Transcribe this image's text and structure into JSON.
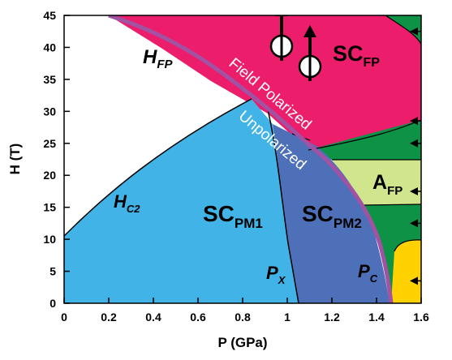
{
  "chart_data": {
    "type": "area",
    "xlabel": "P (GPa)",
    "ylabel": "H (T)",
    "xlim": [
      0,
      1.6
    ],
    "ylim": [
      0,
      45
    ],
    "x_ticks": [
      "0",
      "0.2",
      "0.4",
      "0.6",
      "0.8",
      "1",
      "1.2",
      "1.4",
      "1.6"
    ],
    "y_ticks": [
      "0",
      "5",
      "10",
      "15",
      "20",
      "25",
      "30",
      "35",
      "40",
      "45"
    ],
    "colors": {
      "sc_pm1": "#41b3e6",
      "sc_pm2": "#4e70b9",
      "sc_fp": "#ec1d6b",
      "a_fp": "#d1e68c",
      "green": "#0e9246",
      "yellow": "#ffd100",
      "fp_boundary": "#a152a3"
    },
    "regions": {
      "h_fp": {
        "main": "H",
        "sub": "FP"
      },
      "sc_fp": {
        "main": "SC",
        "sub": "FP"
      },
      "a_fp": {
        "main": "A",
        "sub": "FP"
      },
      "sc_pm1": {
        "main": "SC",
        "sub": "PM1"
      },
      "sc_pm2": {
        "main": "SC",
        "sub": "PM2"
      },
      "h_c2": {
        "main": "H",
        "sub": "C2"
      },
      "p_x": {
        "main": "P",
        "sub": "X"
      },
      "p_c": {
        "main": "P",
        "sub": "C"
      }
    },
    "boundary_labels": {
      "upper": "Field Polarized",
      "lower": "Unpolarized"
    },
    "boundaries": {
      "fp_line": [
        [
          0.2,
          45
        ],
        [
          0.4,
          42.5
        ],
        [
          0.6,
          39.5
        ],
        [
          0.8,
          35
        ],
        [
          0.95,
          30.5
        ],
        [
          1.1,
          26
        ],
        [
          1.2,
          22.5
        ],
        [
          1.3,
          17.5
        ],
        [
          1.38,
          12
        ],
        [
          1.43,
          7
        ],
        [
          1.46,
          3
        ],
        [
          1.47,
          0
        ]
      ],
      "hc2_pm1": [
        [
          0,
          10.5
        ],
        [
          0.2,
          17.5
        ],
        [
          0.4,
          23
        ],
        [
          0.6,
          27
        ],
        [
          0.8,
          31
        ],
        [
          0.9,
          32.5
        ]
      ],
      "px_line": [
        [
          0.9,
          32.5
        ],
        [
          0.96,
          26
        ],
        [
          1.0,
          16.5
        ],
        [
          1.04,
          3
        ],
        [
          1.05,
          0
        ]
      ],
      "pm2_top": [
        [
          0.96,
          26
        ],
        [
          1.08,
          25.5
        ],
        [
          1.12,
          23.5
        ]
      ]
    },
    "green_arrow_fields": [
      42.5,
      28.5,
      25,
      17.5,
      12.5,
      3.5
    ]
  }
}
